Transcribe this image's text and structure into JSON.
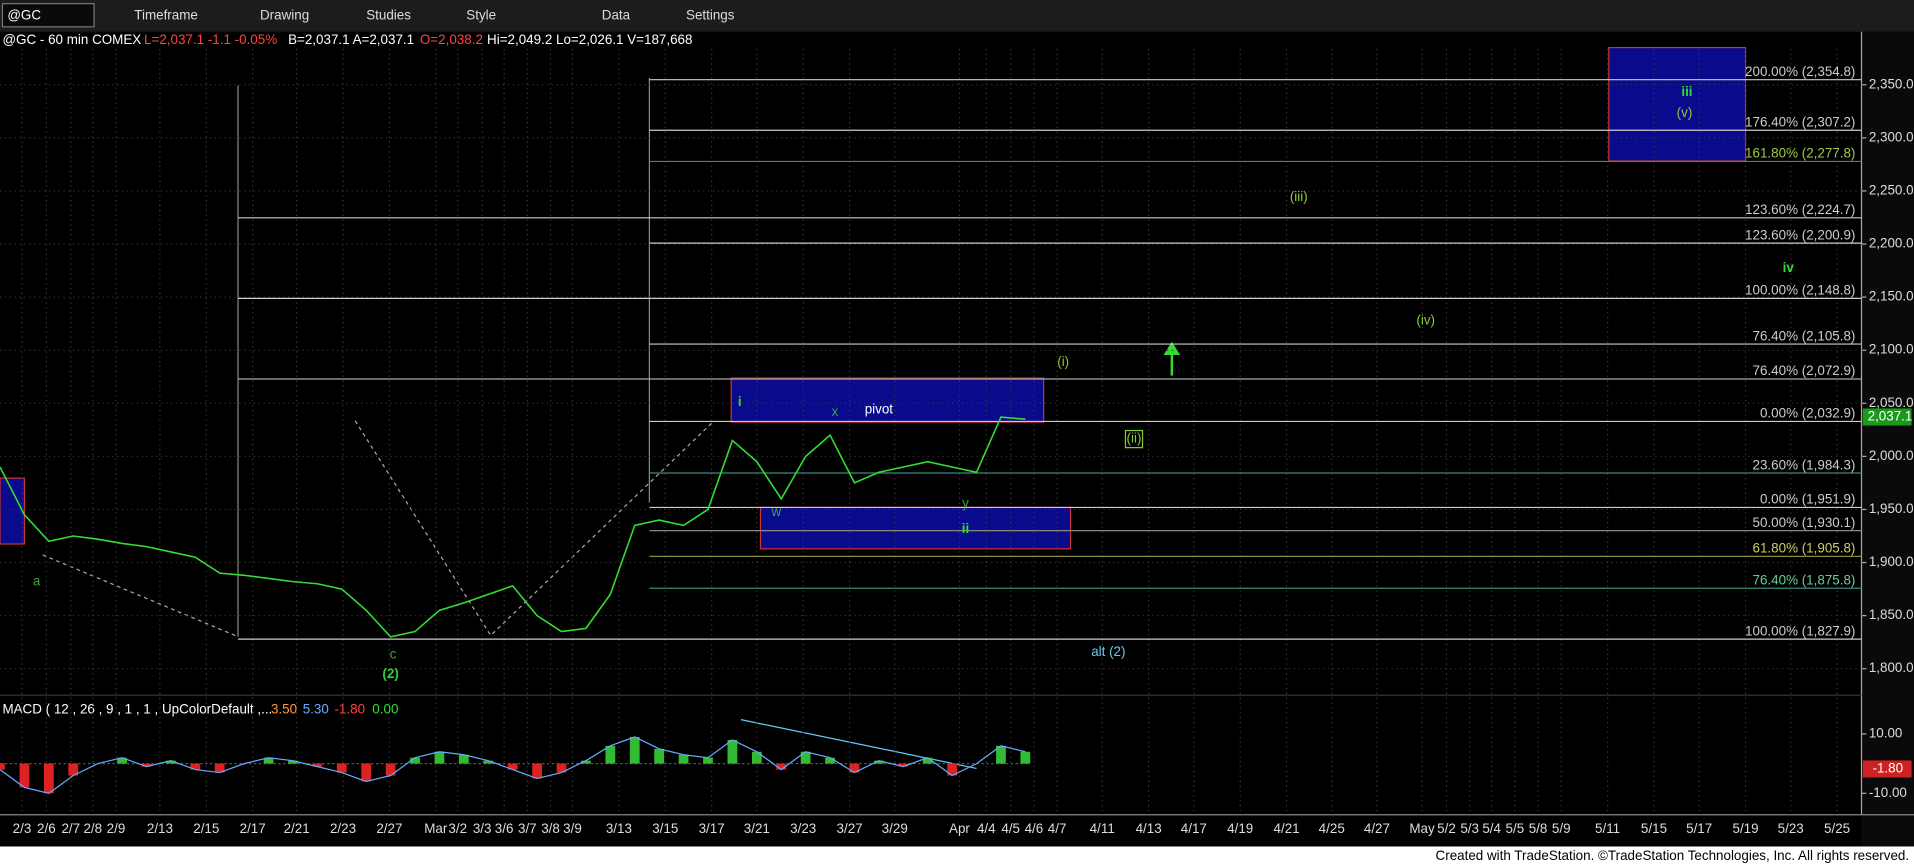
{
  "toolbar": {
    "symbol": "@GC",
    "menus": [
      "Timeframe",
      "Drawing",
      "Studies",
      "Style",
      "Data",
      "Settings"
    ]
  },
  "header": {
    "symbol": "@GC - 60 min COMEX",
    "last": "L=2,037.1 -1.1 -0.05%",
    "bid_ask": "B=2,037.1 A=2,037.1",
    "open": "O=2,038.2",
    "rest": "Hi=2,049.2 Lo=2,026.1 V=187,668"
  },
  "chart_data": {
    "type": "line",
    "color": "#33dd33",
    "values": [
      1990,
      1945,
      1920,
      1925,
      1922,
      1918,
      1915,
      1910,
      1905,
      1890,
      1888,
      1885,
      1882,
      1880,
      1875,
      1855,
      1830,
      1835,
      1855,
      1862,
      1870,
      1878,
      1850,
      1835,
      1838,
      1870,
      1935,
      1940,
      1935,
      1950,
      2015,
      1995,
      1960,
      2000,
      2020,
      1975,
      1985,
      1990,
      1995,
      1990,
      1985,
      2037,
      2035
    ],
    "ylim": [
      1775,
      2400
    ],
    "yticks": [
      {
        "value": 1800,
        "label": "1,800.0"
      },
      {
        "value": 1850,
        "label": "1,850.0"
      },
      {
        "value": 1900,
        "label": "1,900.0"
      },
      {
        "value": 1950,
        "label": "1,950.0"
      },
      {
        "value": 2000,
        "label": "2,000.0"
      },
      {
        "value": 2050,
        "label": "2,050.0"
      },
      {
        "value": 2100,
        "label": "2,100.0"
      },
      {
        "value": 2150,
        "label": "2,150.0"
      },
      {
        "value": 2200,
        "label": "2,200.0"
      },
      {
        "value": 2250,
        "label": "2,250.0"
      },
      {
        "value": 2300,
        "label": "2,300.0"
      },
      {
        "value": 2350,
        "label": "2,350.0"
      }
    ],
    "grid": true,
    "last_price": {
      "value": 2037.1,
      "label": "2,037.1"
    },
    "xlabels": [
      "2/3",
      "2/6",
      "2/7",
      "2/8",
      "2/9",
      "2/13",
      "2/15",
      "2/17",
      "2/21",
      "2/23",
      "2/27",
      "Mar",
      "3/2",
      "3/3",
      "3/6",
      "3/7",
      "3/8",
      "3/9",
      "3/13",
      "3/15",
      "3/17",
      "3/21",
      "3/23",
      "3/27",
      "3/29",
      "Apr",
      "4/4",
      "4/5",
      "4/6",
      "4/7",
      "4/11",
      "4/13",
      "4/17",
      "4/19",
      "4/21",
      "4/25",
      "4/27",
      "May",
      "5/2",
      "5/3",
      "5/4",
      "5/5",
      "5/8",
      "5/9",
      "5/11",
      "5/15",
      "5/17",
      "5/19",
      "5/23",
      "5/25"
    ],
    "fib_levels": [
      {
        "value": 2354.8,
        "label": "200.00% (2,354.8)"
      },
      {
        "value": 2307.2,
        "label": "176.40% (2,307.2)"
      },
      {
        "value": 2277.8,
        "label": "161.80% (2,277.8)"
      },
      {
        "value": 2224.7,
        "label": "123.60% (2,224.7)"
      },
      {
        "value": 2200.9,
        "label": "123.60% (2,200.9)"
      },
      {
        "value": 2148.8,
        "label": "100.00% (2,148.8)"
      },
      {
        "value": 2105.8,
        "label": "76.40% (2,105.8)"
      },
      {
        "value": 2072.9,
        "label": "76.40% (2,072.9)"
      },
      {
        "value": 2032.9,
        "label": "0.00% (2,032.9)"
      },
      {
        "value": 1984.3,
        "label": "23.60% (1,984.3)"
      },
      {
        "value": 1951.9,
        "label": "0.00% (1,951.9)"
      },
      {
        "value": 1930.1,
        "label": "50.00% (1,930.1)"
      },
      {
        "value": 1905.8,
        "label": "61.80% (1,905.8)"
      },
      {
        "value": 1875.8,
        "label": "76.40% (1,875.8)"
      },
      {
        "value": 1827.9,
        "label": "100.00% (1,827.9)"
      }
    ],
    "wave_labels": [
      "i",
      "ii",
      "iii",
      "iv",
      "(i)",
      "(ii)",
      "(iii)",
      "(iv)",
      "(v)",
      "w",
      "x",
      "y",
      "a",
      "c",
      "(2)",
      "alt (2)",
      "pivot"
    ],
    "macd": {
      "title": "MACD ( 12 , 26 , 9 , 1 , 1 , UpColorDefault ,...",
      "readings": [
        {
          "value": 3.5,
          "label": "3.50"
        },
        {
          "value": 5.3,
          "label": "5.30"
        },
        {
          "value": -1.8,
          "label": "-1.80"
        },
        {
          "value": 0,
          "label": "0.00"
        }
      ],
      "values": [
        -2,
        -8,
        -10,
        -4,
        0,
        2,
        -1,
        1,
        -2,
        -3,
        0,
        2,
        1,
        -1,
        -3,
        -6,
        -4,
        2,
        4,
        3,
        1,
        -2,
        -5,
        -3,
        1,
        6,
        9,
        5,
        3,
        2,
        8,
        4,
        -2,
        4,
        2,
        -3,
        1,
        -1,
        2,
        -4,
        0,
        6,
        4
      ],
      "ylim": [
        -16,
        21
      ],
      "yticks": [
        {
          "value": 10,
          "label": "10.00"
        },
        {
          "value": -10,
          "label": "-10.00"
        }
      ],
      "last": {
        "value": -1.8,
        "label": "-1.80"
      }
    }
  },
  "footer": "Created with TradeStation. ©TradeStation Technologies, Inc. All rights reserved."
}
